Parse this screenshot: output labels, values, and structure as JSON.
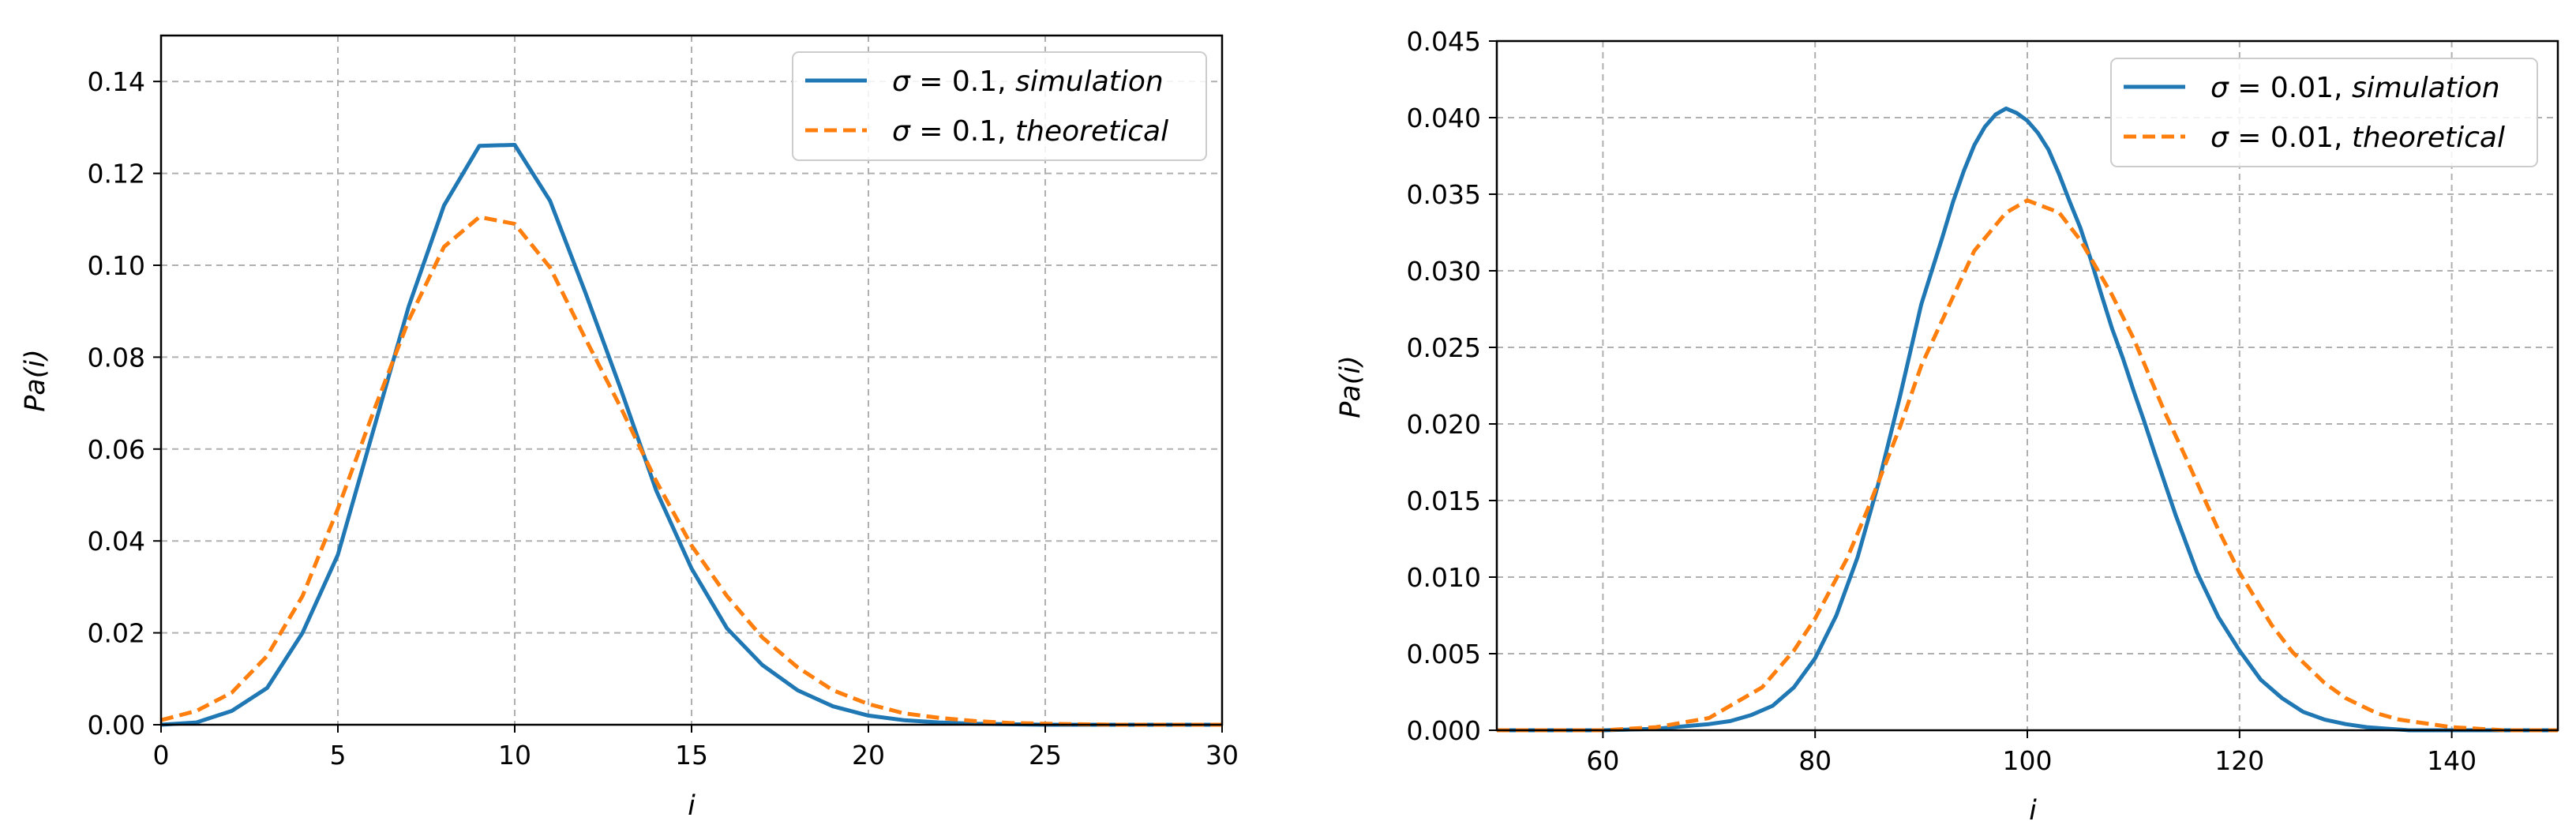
{
  "chart_data": [
    {
      "type": "line",
      "title": "",
      "xlabel": "i",
      "ylabel": "Pa(i)",
      "xlim": [
        0,
        30
      ],
      "ylim": [
        0,
        0.15
      ],
      "xticks": [
        0,
        5,
        10,
        15,
        20,
        25,
        30
      ],
      "yticks": [
        0.0,
        0.02,
        0.04,
        0.06,
        0.08,
        0.1,
        0.12,
        0.14
      ],
      "ytick_labels": [
        "0.00",
        "0.02",
        "0.04",
        "0.06",
        "0.08",
        "0.10",
        "0.12",
        "0.14"
      ],
      "grid": true,
      "legend_position": "top-right",
      "series": [
        {
          "name": "σ = 0.1, simulation",
          "legend_sigma": "0.1",
          "legend_kind": "simulation",
          "color": "#1f77b4",
          "style": "solid",
          "x": [
            0,
            1,
            2,
            3,
            4,
            5,
            6,
            7,
            8,
            9,
            10,
            11,
            12,
            13,
            14,
            15,
            16,
            17,
            18,
            19,
            20,
            21,
            22,
            23,
            24,
            25,
            26,
            27,
            28,
            29,
            30
          ],
          "y": [
            0.0,
            0.0005,
            0.003,
            0.008,
            0.02,
            0.037,
            0.064,
            0.091,
            0.113,
            0.126,
            0.1262,
            0.114,
            0.094,
            0.073,
            0.051,
            0.034,
            0.021,
            0.013,
            0.0075,
            0.004,
            0.002,
            0.001,
            0.0005,
            0.0002,
            0.0001,
            0.0,
            0.0,
            0.0,
            0.0,
            0.0,
            0.0
          ]
        },
        {
          "name": "σ = 0.1, theoretical",
          "legend_sigma": "0.1",
          "legend_kind": "theoretical",
          "color": "#ff7f0e",
          "style": "dashed",
          "x": [
            0,
            1,
            2,
            3,
            4,
            5,
            6,
            7,
            8,
            9,
            10,
            11,
            12,
            13,
            14,
            15,
            16,
            17,
            18,
            19,
            20,
            21,
            22,
            23,
            24,
            25,
            26,
            27,
            28,
            29,
            30
          ],
          "y": [
            0.001,
            0.003,
            0.007,
            0.015,
            0.028,
            0.047,
            0.068,
            0.088,
            0.104,
            0.1105,
            0.109,
            0.0995,
            0.084,
            0.069,
            0.053,
            0.039,
            0.028,
            0.019,
            0.0125,
            0.0075,
            0.0045,
            0.0025,
            0.0015,
            0.0008,
            0.0004,
            0.0002,
            0.0001,
            0.0,
            0.0,
            0.0,
            0.0
          ]
        }
      ]
    },
    {
      "type": "line",
      "title": "",
      "xlabel": "i",
      "ylabel": "Pa(i)",
      "xlim": [
        50,
        150
      ],
      "ylim": [
        0,
        0.045
      ],
      "xticks": [
        60,
        80,
        100,
        120,
        140
      ],
      "yticks": [
        0.0,
        0.005,
        0.01,
        0.015,
        0.02,
        0.025,
        0.03,
        0.035,
        0.04,
        0.045
      ],
      "ytick_labels": [
        "0.000",
        "0.005",
        "0.010",
        "0.015",
        "0.020",
        "0.025",
        "0.030",
        "0.035",
        "0.040",
        "0.045"
      ],
      "grid": true,
      "legend_position": "top-right",
      "series": [
        {
          "name": "σ = 0.01, simulation",
          "legend_sigma": "0.01",
          "legend_kind": "simulation",
          "color": "#1f77b4",
          "style": "solid",
          "x": [
            50,
            60,
            65,
            70,
            72,
            74,
            76,
            78,
            80,
            82,
            84,
            86,
            88,
            90,
            91,
            92,
            93,
            94,
            95,
            96,
            97,
            98,
            99,
            100,
            101,
            102,
            103,
            104,
            105,
            106,
            107,
            108,
            109,
            110,
            111,
            112,
            114,
            116,
            118,
            120,
            122,
            124,
            126,
            128,
            130,
            132,
            134,
            136,
            140,
            150
          ],
          "y": [
            0.0,
            0.0,
            0.0001,
            0.0004,
            0.0006,
            0.001,
            0.0016,
            0.0028,
            0.0047,
            0.0075,
            0.0113,
            0.0162,
            0.0218,
            0.0278,
            0.03,
            0.0322,
            0.0345,
            0.0365,
            0.0382,
            0.0394,
            0.0402,
            0.0406,
            0.0403,
            0.0398,
            0.039,
            0.0379,
            0.0363,
            0.0345,
            0.0328,
            0.0307,
            0.0284,
            0.0262,
            0.0243,
            0.0222,
            0.0202,
            0.0181,
            0.014,
            0.0103,
            0.0074,
            0.0052,
            0.0033,
            0.0021,
            0.0012,
            0.0007,
            0.0004,
            0.0002,
            0.0001,
            0.0,
            0.0,
            0.0
          ]
        },
        {
          "name": "σ = 0.01, theoretical",
          "legend_sigma": "0.01",
          "legend_kind": "theoretical",
          "color": "#ff7f0e",
          "style": "dashed",
          "x": [
            50,
            55,
            60,
            65,
            70,
            75,
            78,
            80,
            83,
            85,
            88,
            90,
            93,
            95,
            98,
            100,
            103,
            105,
            108,
            110,
            113,
            115,
            118,
            120,
            123,
            125,
            128,
            130,
            133,
            135,
            140,
            145,
            150
          ],
          "y": [
            0.0,
            0.0,
            0.0,
            0.0002,
            0.0008,
            0.0028,
            0.0052,
            0.0073,
            0.0112,
            0.0145,
            0.0198,
            0.0238,
            0.0283,
            0.0313,
            0.0338,
            0.0346,
            0.0338,
            0.032,
            0.0284,
            0.0256,
            0.0207,
            0.0177,
            0.0131,
            0.0103,
            0.0069,
            0.0051,
            0.0031,
            0.0021,
            0.0011,
            0.0007,
            0.0002,
            0.0,
            0.0
          ]
        }
      ]
    }
  ]
}
